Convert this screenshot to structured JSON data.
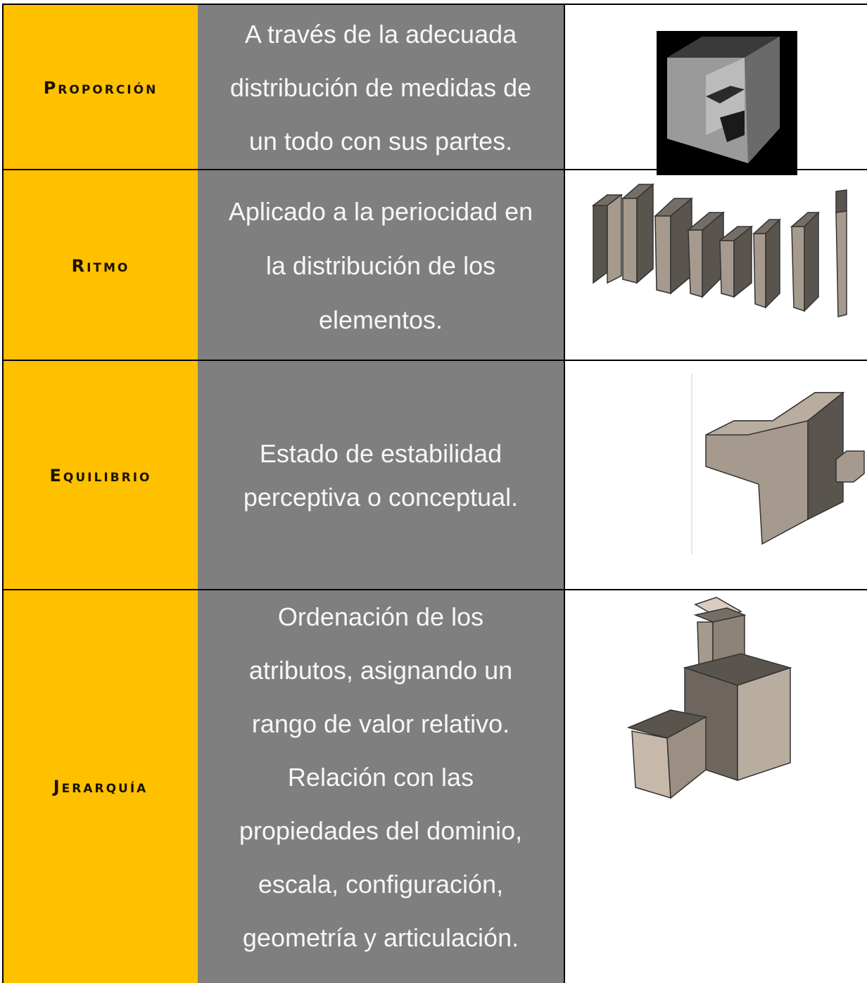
{
  "rows": [
    {
      "term": "Proporción",
      "description": [
        "A través de la adecuada",
        "distribución de medidas de",
        "un todo con sus partes."
      ]
    },
    {
      "term": "Ritmo",
      "description": [
        "Aplicado a la periocidad en",
        "la distribución de los",
        "elementos."
      ]
    },
    {
      "term": "Equilibrio",
      "description": [
        "Estado de estabilidad",
        "perceptiva o conceptual."
      ]
    },
    {
      "term": "Jerarquía",
      "description": [
        "Ordenación de los",
        "atributos, asignando un",
        "rango de valor relativo.",
        "Relación con las",
        "propiedades del dominio,",
        "escala, configuración,",
        "geometría y articulación."
      ]
    }
  ]
}
